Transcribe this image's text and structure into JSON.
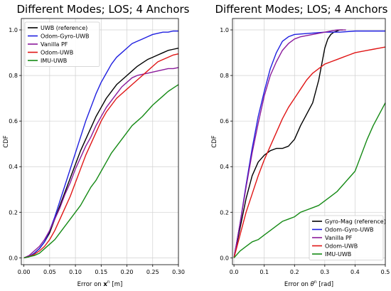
{
  "chart_data": [
    {
      "type": "line",
      "title": "Different Modes; LOS; 4 Anchors",
      "xlabel": "Error on",
      "xlabel_symbol": "x",
      "xlabel_sup": "n",
      "xlabel_unit": "[m]",
      "ylabel": "CDF",
      "xlim": [
        -0.005,
        0.3
      ],
      "ylim": [
        -0.03,
        1.05
      ],
      "xticks": [
        "0.00",
        "0.05",
        "0.10",
        "0.15",
        "0.20",
        "0.25",
        "0.30"
      ],
      "yticks": [
        "0.0",
        "0.2",
        "0.4",
        "0.6",
        "0.8",
        "1.0"
      ],
      "grid": true,
      "legend_position": "top-left",
      "series": [
        {
          "name": "UWB (reference)",
          "color": "#000000",
          "x": [
            0,
            0.01,
            0.02,
            0.03,
            0.04,
            0.05,
            0.06,
            0.07,
            0.08,
            0.09,
            0.1,
            0.11,
            0.12,
            0.13,
            0.14,
            0.15,
            0.16,
            0.17,
            0.18,
            0.19,
            0.2,
            0.21,
            0.22,
            0.23,
            0.24,
            0.25,
            0.26,
            0.27,
            0.28,
            0.29,
            0.3
          ],
          "y": [
            0,
            0.005,
            0.02,
            0.04,
            0.07,
            0.11,
            0.17,
            0.23,
            0.29,
            0.35,
            0.41,
            0.47,
            0.52,
            0.57,
            0.62,
            0.66,
            0.7,
            0.73,
            0.76,
            0.78,
            0.8,
            0.82,
            0.84,
            0.855,
            0.87,
            0.88,
            0.89,
            0.9,
            0.91,
            0.915,
            0.92
          ]
        },
        {
          "name": "Odom-Gyro-UWB",
          "color": "#1f1fe0",
          "x": [
            0,
            0.01,
            0.02,
            0.03,
            0.04,
            0.05,
            0.06,
            0.07,
            0.08,
            0.09,
            0.1,
            0.11,
            0.12,
            0.13,
            0.14,
            0.15,
            0.16,
            0.17,
            0.18,
            0.19,
            0.2,
            0.21,
            0.22,
            0.23,
            0.24,
            0.25,
            0.26,
            0.27,
            0.28,
            0.29,
            0.3
          ],
          "y": [
            0,
            0.005,
            0.02,
            0.04,
            0.07,
            0.12,
            0.18,
            0.25,
            0.32,
            0.39,
            0.46,
            0.53,
            0.6,
            0.66,
            0.72,
            0.77,
            0.81,
            0.85,
            0.88,
            0.9,
            0.92,
            0.94,
            0.95,
            0.96,
            0.97,
            0.98,
            0.985,
            0.99,
            0.99,
            0.995,
            0.995
          ]
        },
        {
          "name": "Vanilla PF",
          "color": "#8a1a9b",
          "x": [
            0,
            0.01,
            0.02,
            0.03,
            0.04,
            0.05,
            0.06,
            0.07,
            0.08,
            0.09,
            0.1,
            0.11,
            0.12,
            0.13,
            0.14,
            0.15,
            0.16,
            0.17,
            0.18,
            0.19,
            0.2,
            0.21,
            0.22,
            0.23,
            0.24,
            0.25,
            0.26,
            0.27,
            0.28,
            0.29,
            0.3
          ],
          "y": [
            0,
            0.01,
            0.03,
            0.05,
            0.08,
            0.12,
            0.17,
            0.22,
            0.28,
            0.33,
            0.39,
            0.44,
            0.49,
            0.53,
            0.58,
            0.62,
            0.66,
            0.69,
            0.72,
            0.75,
            0.77,
            0.79,
            0.8,
            0.805,
            0.81,
            0.815,
            0.82,
            0.825,
            0.83,
            0.83,
            0.835
          ]
        },
        {
          "name": "Odom-UWB",
          "color": "#e01515",
          "x": [
            0,
            0.01,
            0.02,
            0.03,
            0.04,
            0.05,
            0.06,
            0.07,
            0.08,
            0.09,
            0.1,
            0.11,
            0.12,
            0.13,
            0.14,
            0.15,
            0.16,
            0.17,
            0.18,
            0.19,
            0.2,
            0.21,
            0.22,
            0.23,
            0.24,
            0.25,
            0.26,
            0.27,
            0.28,
            0.29,
            0.3
          ],
          "y": [
            0,
            0.005,
            0.015,
            0.03,
            0.05,
            0.08,
            0.12,
            0.17,
            0.22,
            0.27,
            0.33,
            0.39,
            0.45,
            0.5,
            0.55,
            0.6,
            0.64,
            0.67,
            0.7,
            0.72,
            0.74,
            0.76,
            0.78,
            0.8,
            0.82,
            0.84,
            0.86,
            0.87,
            0.88,
            0.89,
            0.895
          ]
        },
        {
          "name": "IMU-UWB",
          "color": "#158a15",
          "x": [
            0,
            0.01,
            0.02,
            0.03,
            0.04,
            0.05,
            0.06,
            0.07,
            0.08,
            0.09,
            0.1,
            0.11,
            0.12,
            0.13,
            0.14,
            0.15,
            0.16,
            0.17,
            0.18,
            0.19,
            0.2,
            0.21,
            0.22,
            0.23,
            0.24,
            0.25,
            0.26,
            0.27,
            0.28,
            0.29,
            0.3
          ],
          "y": [
            0,
            0.005,
            0.01,
            0.02,
            0.04,
            0.06,
            0.08,
            0.11,
            0.14,
            0.17,
            0.2,
            0.23,
            0.27,
            0.31,
            0.34,
            0.38,
            0.42,
            0.46,
            0.49,
            0.52,
            0.55,
            0.58,
            0.6,
            0.62,
            0.645,
            0.67,
            0.69,
            0.71,
            0.73,
            0.745,
            0.76
          ]
        }
      ]
    },
    {
      "type": "line",
      "title": "Different Modes; LOS; 4 Anchors",
      "xlabel": "Error on",
      "xlabel_symbol": "θ",
      "xlabel_sup": "n",
      "xlabel_unit": "[rad]",
      "ylabel": "CDF",
      "xlim": [
        -0.005,
        0.5
      ],
      "ylim": [
        -0.03,
        1.05
      ],
      "xticks": [
        "0.0",
        "0.1",
        "0.2",
        "0.3",
        "0.4",
        "0.5"
      ],
      "yticks": [
        "0.0",
        "0.2",
        "0.4",
        "0.6",
        "0.8",
        "1.0"
      ],
      "grid": true,
      "legend_position": "bottom-right",
      "series": [
        {
          "name": "Gyro-Mag (reference)",
          "color": "#000000",
          "x": [
            0,
            0.02,
            0.04,
            0.06,
            0.08,
            0.1,
            0.12,
            0.14,
            0.16,
            0.18,
            0.2,
            0.22,
            0.24,
            0.26,
            0.28,
            0.29,
            0.3,
            0.31,
            0.32,
            0.33,
            0.34,
            0.35,
            0.36
          ],
          "y": [
            0,
            0.13,
            0.26,
            0.36,
            0.42,
            0.45,
            0.47,
            0.48,
            0.48,
            0.49,
            0.52,
            0.58,
            0.63,
            0.68,
            0.78,
            0.85,
            0.92,
            0.96,
            0.98,
            0.99,
            0.995,
            1.0,
            1.0
          ]
        },
        {
          "name": "Odom-Gyro-UWB",
          "color": "#1f1fe0",
          "x": [
            0,
            0.02,
            0.04,
            0.06,
            0.08,
            0.1,
            0.12,
            0.14,
            0.16,
            0.18,
            0.2,
            0.25,
            0.3,
            0.35,
            0.4,
            0.45,
            0.5
          ],
          "y": [
            0,
            0.15,
            0.32,
            0.48,
            0.62,
            0.73,
            0.83,
            0.9,
            0.95,
            0.97,
            0.98,
            0.985,
            0.99,
            0.99,
            0.995,
            0.995,
            0.995
          ]
        },
        {
          "name": "Vanilla PF",
          "color": "#8a1a9b",
          "x": [
            0,
            0.02,
            0.04,
            0.06,
            0.08,
            0.1,
            0.12,
            0.14,
            0.16,
            0.18,
            0.2,
            0.22,
            0.24,
            0.26,
            0.28,
            0.3,
            0.32,
            0.34,
            0.36,
            0.37
          ],
          "y": [
            0,
            0.15,
            0.31,
            0.46,
            0.59,
            0.71,
            0.8,
            0.86,
            0.91,
            0.94,
            0.96,
            0.97,
            0.975,
            0.98,
            0.985,
            0.99,
            0.995,
            1.0,
            1.0,
            1.0
          ]
        },
        {
          "name": "Odom-UWB",
          "color": "#e01515",
          "x": [
            0,
            0.02,
            0.04,
            0.06,
            0.08,
            0.1,
            0.12,
            0.14,
            0.16,
            0.18,
            0.2,
            0.22,
            0.24,
            0.26,
            0.28,
            0.3,
            0.32,
            0.34,
            0.36,
            0.38,
            0.4,
            0.42,
            0.44,
            0.46,
            0.48,
            0.5
          ],
          "y": [
            0,
            0.1,
            0.2,
            0.28,
            0.36,
            0.43,
            0.49,
            0.55,
            0.61,
            0.66,
            0.7,
            0.74,
            0.78,
            0.81,
            0.83,
            0.85,
            0.86,
            0.87,
            0.88,
            0.89,
            0.9,
            0.905,
            0.91,
            0.915,
            0.92,
            0.925
          ]
        },
        {
          "name": "IMU-UWB",
          "color": "#158a15",
          "x": [
            0,
            0.02,
            0.04,
            0.06,
            0.08,
            0.1,
            0.12,
            0.14,
            0.16,
            0.18,
            0.2,
            0.22,
            0.24,
            0.26,
            0.28,
            0.3,
            0.32,
            0.34,
            0.36,
            0.38,
            0.4,
            0.42,
            0.44,
            0.46,
            0.48,
            0.5
          ],
          "y": [
            0,
            0.03,
            0.05,
            0.07,
            0.08,
            0.1,
            0.12,
            0.14,
            0.16,
            0.17,
            0.18,
            0.2,
            0.21,
            0.22,
            0.23,
            0.25,
            0.27,
            0.29,
            0.32,
            0.35,
            0.38,
            0.45,
            0.52,
            0.58,
            0.63,
            0.68
          ]
        }
      ]
    }
  ]
}
